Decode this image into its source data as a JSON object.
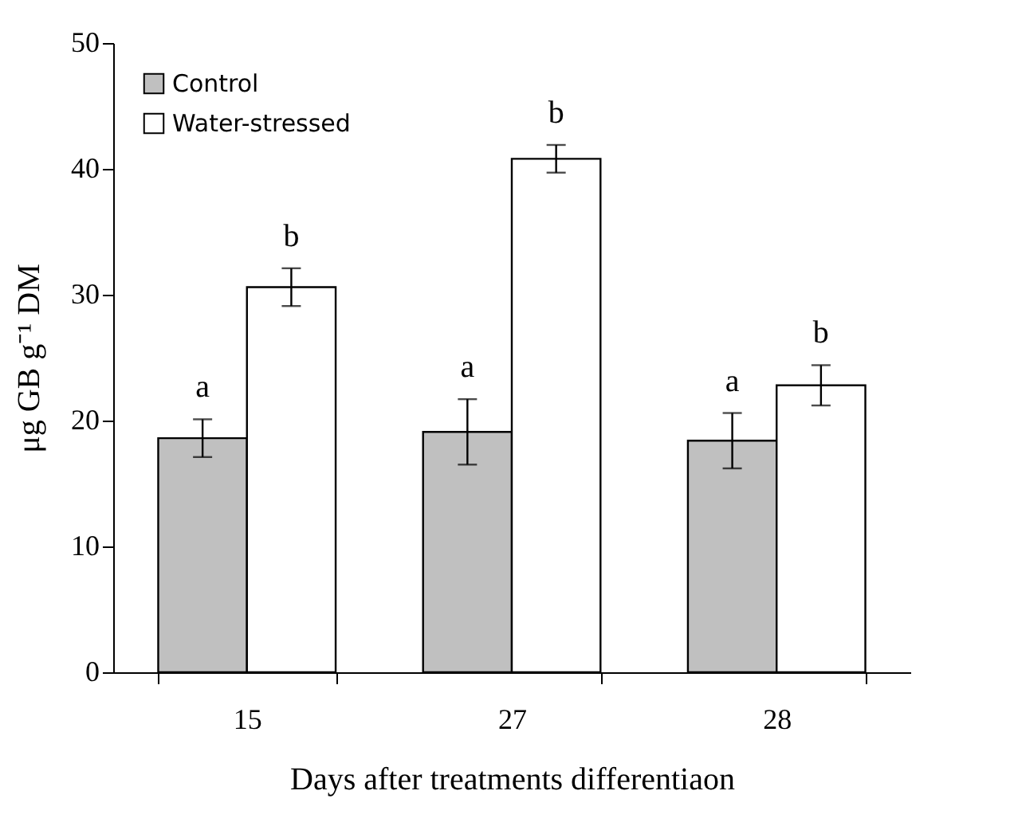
{
  "chart_data": {
    "type": "bar",
    "xlabel": "Days after treatments differentiaon",
    "ylabel": "μg GB g⁻¹ DM",
    "categories": [
      "15",
      "27",
      "28"
    ],
    "series": [
      {
        "name": "Control",
        "color": "#c0c0c0",
        "values": [
          18.6,
          19.1,
          18.4
        ],
        "errors": [
          1.5,
          2.6,
          2.2
        ]
      },
      {
        "name": "Water-stressed",
        "color": "#ffffff",
        "values": [
          30.6,
          40.8,
          22.8
        ],
        "errors": [
          1.5,
          1.1,
          1.6
        ]
      }
    ],
    "ylim": [
      0,
      50
    ],
    "yticks": [
      0,
      10,
      20,
      30,
      40,
      50
    ],
    "grid": false,
    "legend": "top left",
    "annotations": [
      {
        "text": "a",
        "x": "15",
        "y": 18.6
      },
      {
        "text": "b",
        "x": "15",
        "y": 30.6
      },
      {
        "text": "a",
        "x": "27",
        "y": 19.1
      },
      {
        "text": "b",
        "x": "27",
        "y": 40.8
      },
      {
        "text": "a",
        "x": "28",
        "y": 18.4
      },
      {
        "text": "b",
        "x": "28",
        "y": 22.8
      }
    ]
  }
}
